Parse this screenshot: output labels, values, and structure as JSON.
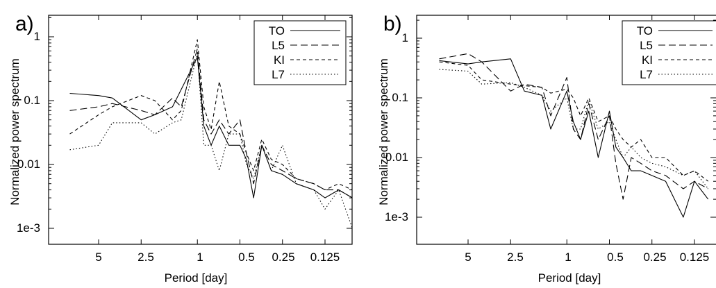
{
  "panels": [
    {
      "letter": "a)",
      "xlabel": "Period [day]",
      "ylabel": "Normalized power spectrum",
      "x_ticks": [
        "5",
        "2.5",
        "1",
        "0.5",
        "0.25",
        "0.125"
      ],
      "y_ticks": [
        "1",
        "0.1",
        "0.01",
        "1e-3"
      ],
      "legend": [
        "TO",
        "L5",
        "KI",
        "L7"
      ]
    },
    {
      "letter": "b)",
      "xlabel": "Period [day]",
      "ylabel": "Normalized power spectrum",
      "x_ticks": [
        "5",
        "2.5",
        "1",
        "0.5",
        "0.25",
        "0.125"
      ],
      "y_ticks": [
        "1",
        "0.1",
        "0.01",
        "1e-3"
      ],
      "legend": [
        "TO",
        "L5",
        "KI",
        "L7"
      ]
    }
  ],
  "chart_data": [
    {
      "type": "line",
      "title": "",
      "panel": "a)",
      "xlabel": "Period [day]",
      "ylabel": "Normalized power spectrum",
      "x_scale": "log",
      "y_scale": "log",
      "x_direction": "decreasing",
      "xlim": [
        8.0,
        0.08
      ],
      "ylim": [
        0.0005,
        2.0
      ],
      "legend_position": "top-right",
      "grid": false,
      "series": [
        {
          "name": "TO",
          "style": "solid",
          "x": [
            8,
            5,
            4,
            2.5,
            2,
            1.5,
            1.3,
            1,
            0.9,
            0.8,
            0.7,
            0.6,
            0.5,
            0.45,
            0.4,
            0.35,
            0.3,
            0.25,
            0.2,
            0.15,
            0.125,
            0.1,
            0.08
          ],
          "y": [
            0.13,
            0.12,
            0.11,
            0.05,
            0.06,
            0.08,
            0.15,
            0.48,
            0.04,
            0.02,
            0.04,
            0.02,
            0.02,
            0.012,
            0.003,
            0.02,
            0.008,
            0.007,
            0.005,
            0.004,
            0.003,
            0.004,
            0.003
          ]
        },
        {
          "name": "L5",
          "style": "dashed",
          "x": [
            8,
            5,
            4,
            2.5,
            2,
            1.5,
            1.3,
            1,
            0.9,
            0.8,
            0.7,
            0.6,
            0.5,
            0.45,
            0.4,
            0.35,
            0.3,
            0.25,
            0.2,
            0.15,
            0.125,
            0.1,
            0.08
          ],
          "y": [
            0.07,
            0.08,
            0.09,
            0.07,
            0.06,
            0.11,
            0.08,
            0.65,
            0.05,
            0.03,
            0.05,
            0.03,
            0.05,
            0.015,
            0.005,
            0.02,
            0.01,
            0.008,
            0.006,
            0.005,
            0.004,
            0.004,
            0.003
          ]
        },
        {
          "name": "KI",
          "style": "short-dashed",
          "x": [
            8,
            5,
            4,
            2.5,
            2,
            1.5,
            1.3,
            1,
            0.9,
            0.8,
            0.7,
            0.6,
            0.5,
            0.45,
            0.4,
            0.35,
            0.3,
            0.25,
            0.2,
            0.15,
            0.125,
            0.1,
            0.08
          ],
          "y": [
            0.03,
            0.06,
            0.08,
            0.12,
            0.1,
            0.05,
            0.07,
            0.9,
            0.08,
            0.035,
            0.2,
            0.04,
            0.03,
            0.015,
            0.008,
            0.025,
            0.012,
            0.01,
            0.006,
            0.005,
            0.004,
            0.005,
            0.004
          ]
        },
        {
          "name": "L7",
          "style": "dotted",
          "x": [
            8,
            5,
            4,
            2.5,
            2,
            1.5,
            1.3,
            1,
            0.9,
            0.8,
            0.7,
            0.6,
            0.5,
            0.45,
            0.4,
            0.35,
            0.3,
            0.25,
            0.2,
            0.15,
            0.125,
            0.1,
            0.08
          ],
          "y": [
            0.017,
            0.02,
            0.045,
            0.045,
            0.03,
            0.045,
            0.05,
            0.55,
            0.02,
            0.02,
            0.008,
            0.03,
            0.03,
            0.01,
            0.006,
            0.02,
            0.008,
            0.02,
            0.005,
            0.004,
            0.002,
            0.004,
            0.001
          ]
        }
      ]
    },
    {
      "type": "line",
      "title": "",
      "panel": "b)",
      "xlabel": "Period [day]",
      "ylabel": "Normalized power spectrum",
      "x_scale": "log",
      "y_scale": "log",
      "x_direction": "decreasing",
      "xlim": [
        8.0,
        0.1
      ],
      "ylim": [
        0.0005,
        2.0
      ],
      "legend_position": "top-right",
      "grid": false,
      "series": [
        {
          "name": "TO",
          "style": "solid",
          "x": [
            8,
            5,
            4,
            2.5,
            2,
            1.5,
            1.3,
            1,
            0.9,
            0.8,
            0.7,
            0.6,
            0.5,
            0.45,
            0.4,
            0.35,
            0.3,
            0.25,
            0.2,
            0.15,
            0.125,
            0.1
          ],
          "y": [
            0.42,
            0.37,
            0.4,
            0.45,
            0.13,
            0.11,
            0.03,
            0.13,
            0.04,
            0.02,
            0.06,
            0.01,
            0.06,
            0.015,
            0.01,
            0.006,
            0.006,
            0.005,
            0.004,
            0.001,
            0.004,
            0.002
          ]
        },
        {
          "name": "L5",
          "style": "dashed",
          "x": [
            8,
            5,
            4,
            2.5,
            2,
            1.5,
            1.3,
            1,
            0.9,
            0.8,
            0.7,
            0.6,
            0.5,
            0.45,
            0.4,
            0.35,
            0.3,
            0.25,
            0.2,
            0.15,
            0.125,
            0.1
          ],
          "y": [
            0.45,
            0.55,
            0.4,
            0.13,
            0.17,
            0.15,
            0.05,
            0.22,
            0.03,
            0.02,
            0.08,
            0.02,
            0.05,
            0.008,
            0.002,
            0.01,
            0.008,
            0.006,
            0.005,
            0.003,
            0.004,
            0.003
          ]
        },
        {
          "name": "KI",
          "style": "short-dashed",
          "x": [
            8,
            5,
            4,
            2.5,
            2,
            1.5,
            1.3,
            1,
            0.9,
            0.8,
            0.7,
            0.6,
            0.5,
            0.45,
            0.4,
            0.35,
            0.3,
            0.25,
            0.2,
            0.15,
            0.125,
            0.1
          ],
          "y": [
            0.4,
            0.35,
            0.2,
            0.17,
            0.16,
            0.15,
            0.12,
            0.14,
            0.1,
            0.05,
            0.1,
            0.04,
            0.05,
            0.03,
            0.02,
            0.015,
            0.02,
            0.01,
            0.01,
            0.005,
            0.006,
            0.004
          ]
        },
        {
          "name": "L7",
          "style": "dotted",
          "x": [
            8,
            5,
            4,
            2.5,
            2,
            1.5,
            1.3,
            1,
            0.9,
            0.8,
            0.7,
            0.6,
            0.5,
            0.45,
            0.4,
            0.35,
            0.3,
            0.25,
            0.2,
            0.15,
            0.125,
            0.1
          ],
          "y": [
            0.3,
            0.28,
            0.17,
            0.18,
            0.15,
            0.11,
            0.06,
            0.1,
            0.03,
            0.03,
            0.09,
            0.03,
            0.04,
            0.02,
            0.01,
            0.015,
            0.01,
            0.008,
            0.007,
            0.005,
            0.006,
            0.003
          ]
        }
      ]
    }
  ]
}
